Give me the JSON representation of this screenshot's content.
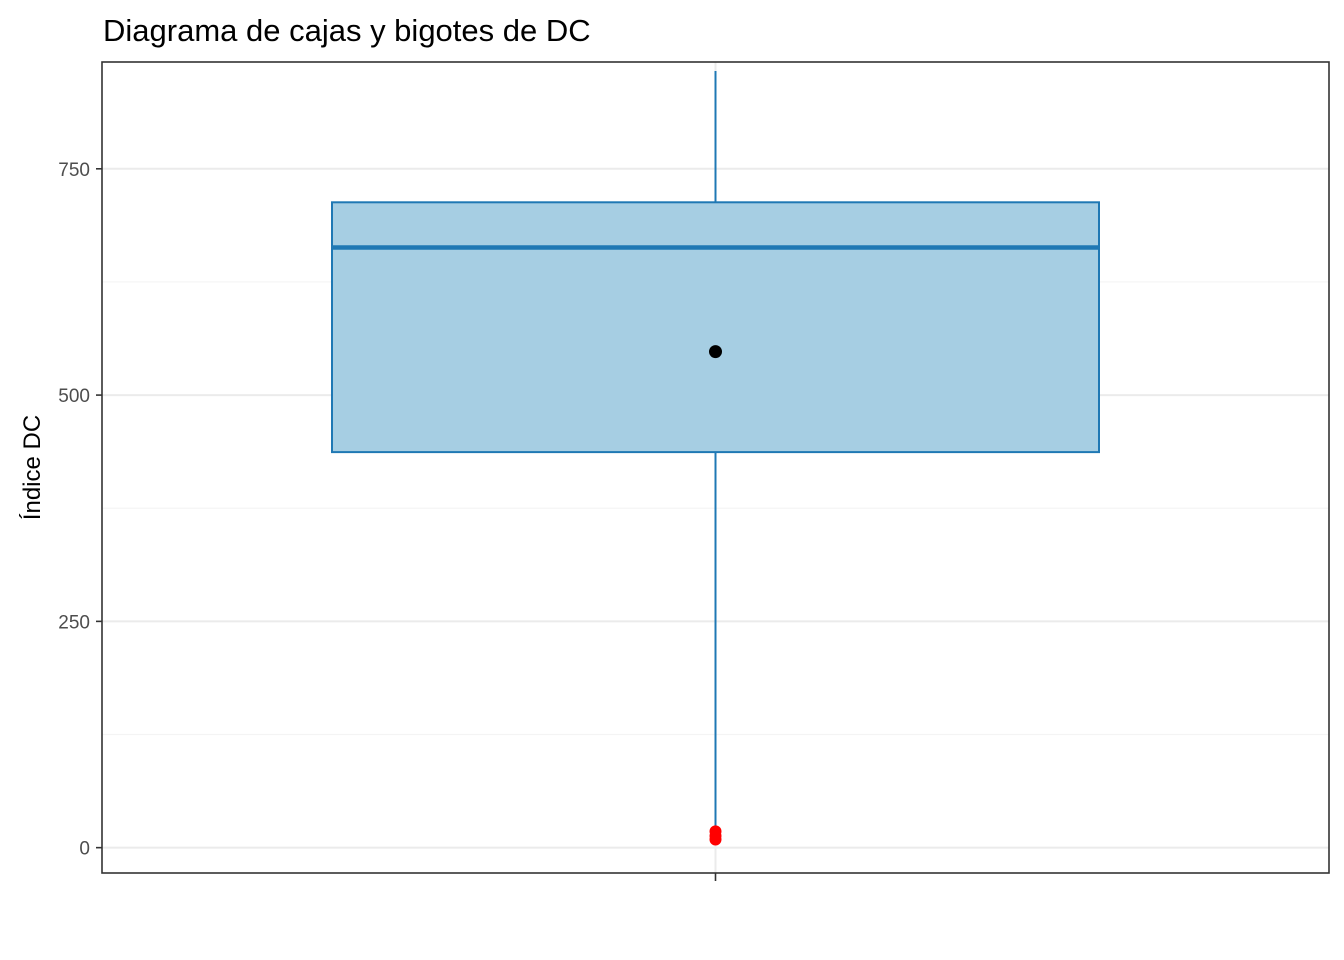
{
  "chart_data": {
    "type": "boxplot",
    "title": "Diagrama de cajas y bigotes de DC",
    "xlabel": "",
    "ylabel": "Índice DC",
    "ylim": [
      -28,
      868
    ],
    "yticks": [
      0,
      250,
      500,
      750
    ],
    "yticks_minor": [
      125,
      375,
      625,
      875
    ],
    "grid": true,
    "legend": "none",
    "box": {
      "whisker_low": 19,
      "q1": 437,
      "median": 663,
      "q3": 713,
      "whisker_high": 858,
      "mean": 548
    },
    "outliers": [
      9,
      13,
      18
    ],
    "colors": {
      "box_fill": "#a6cee3",
      "box_line": "#1f78b4",
      "mean_point": "#000000",
      "outlier": "#ff0000",
      "grid_major": "#ebebeb",
      "grid_minor": "#f4f4f4",
      "panel_border": "#333333"
    }
  }
}
